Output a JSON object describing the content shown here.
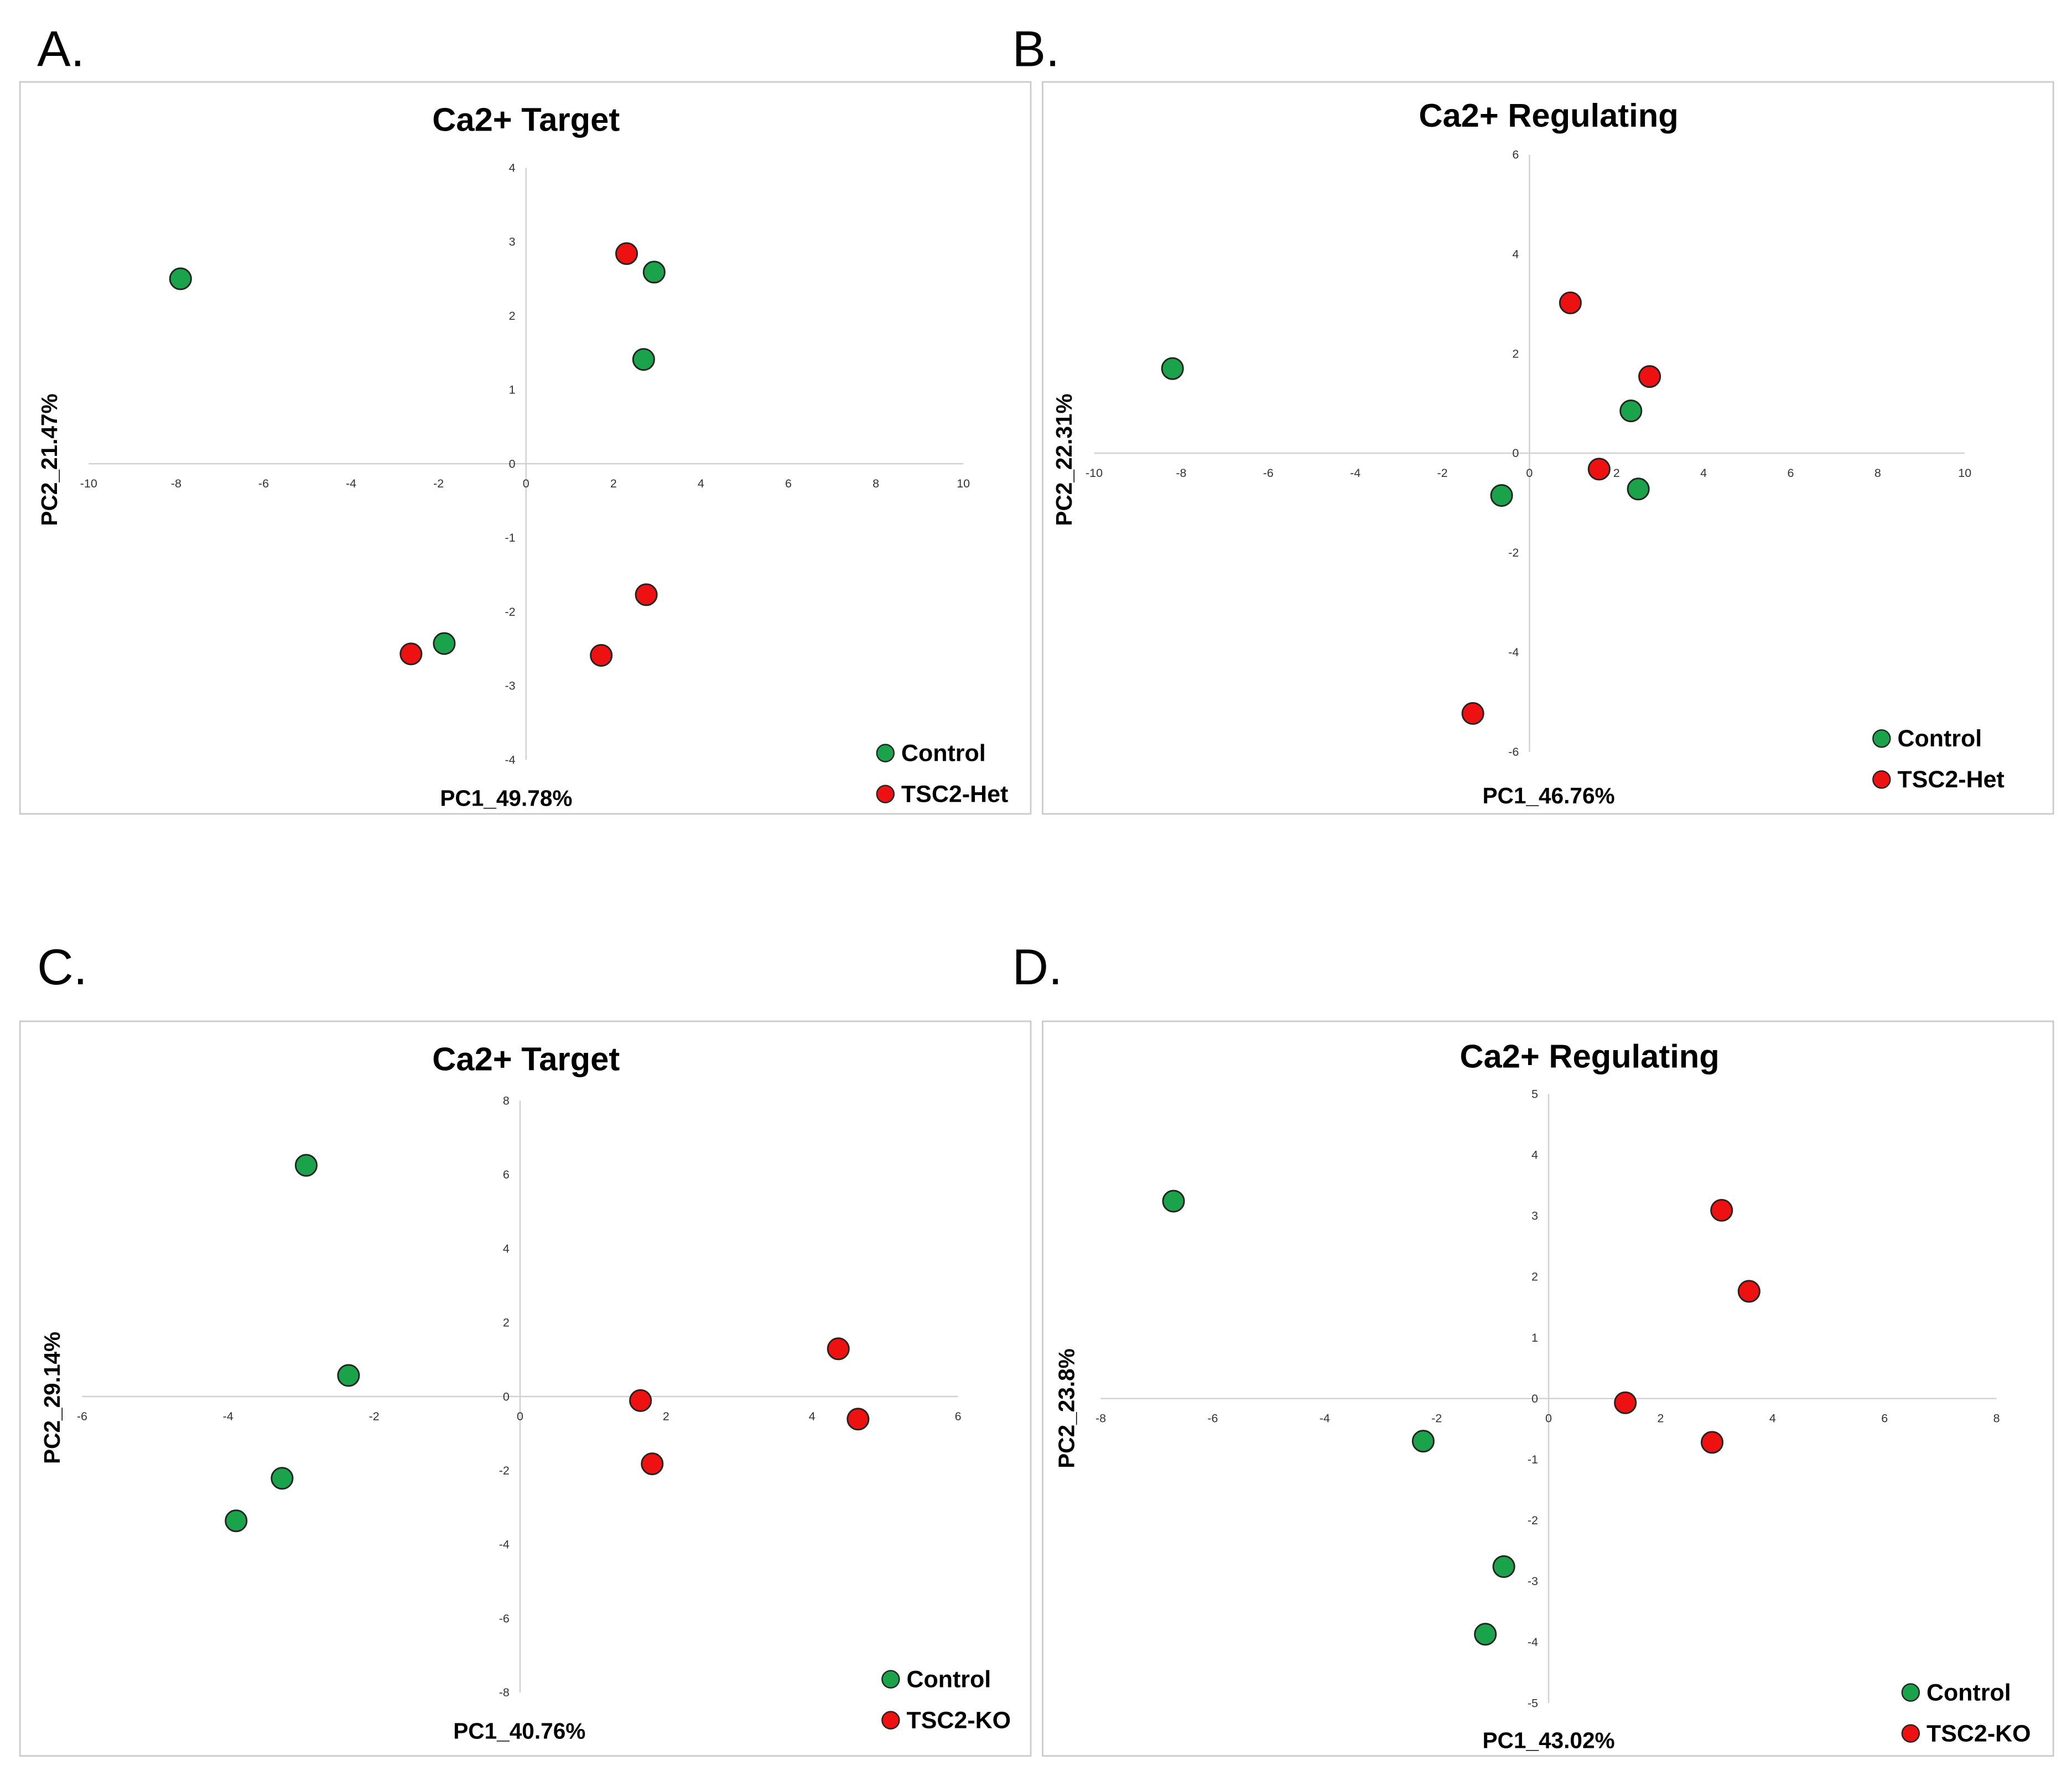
{
  "colors": {
    "Control": "#1aa34a",
    "TSC2-Het": "#ee1111",
    "TSC2-KO": "#ee1111",
    "axis": "#d0d0d0",
    "border": "#cccccc"
  },
  "chart_data": [
    {
      "panel": "A.",
      "type": "scatter",
      "title": "Ca2+ Target",
      "xlabel": "PC1_49.78%",
      "ylabel": "PC2_21.47%",
      "xlim": [
        -10,
        10
      ],
      "ylim": [
        -4,
        4
      ],
      "xstep": 2,
      "ystep": 1,
      "legend_position": "bottom-right",
      "series": [
        {
          "name": "Control",
          "points": [
            [
              -7.9,
              2.5
            ],
            [
              2.93,
              2.59
            ],
            [
              2.69,
              1.41
            ],
            [
              -1.87,
              -2.43
            ]
          ]
        },
        {
          "name": "TSC2-Het",
          "points": [
            [
              2.3,
              2.84
            ],
            [
              2.75,
              -1.77
            ],
            [
              -2.63,
              -2.57
            ],
            [
              1.72,
              -2.59
            ]
          ]
        }
      ]
    },
    {
      "panel": "B.",
      "type": "scatter",
      "title": "Ca2+ Regulating",
      "xlabel": "PC1_46.76%",
      "ylabel": "PC2_22.31%",
      "xlim": [
        -10,
        10
      ],
      "ylim": [
        -6,
        6
      ],
      "xstep": 2,
      "ystep": 2,
      "legend_position": "bottom-right",
      "series": [
        {
          "name": "Control",
          "points": [
            [
              -8.2,
              1.7
            ],
            [
              2.33,
              0.85
            ],
            [
              2.5,
              -0.72
            ],
            [
              -0.64,
              -0.85
            ]
          ]
        },
        {
          "name": "TSC2-Het",
          "points": [
            [
              0.94,
              3.02
            ],
            [
              2.76,
              1.54
            ],
            [
              1.6,
              -0.32
            ],
            [
              -1.3,
              -5.23
            ]
          ]
        }
      ]
    },
    {
      "panel": "C.",
      "type": "scatter",
      "title": "Ca2+ Target",
      "xlabel": "PC1_40.76%",
      "ylabel": "PC2_29.14%",
      "xlim": [
        -6,
        6
      ],
      "ylim": [
        -8,
        8
      ],
      "xstep": 2,
      "ystep": 2,
      "legend_position": "bottom-right",
      "series": [
        {
          "name": "Control",
          "points": [
            [
              -2.93,
              6.25
            ],
            [
              -2.35,
              0.57
            ],
            [
              -3.26,
              -2.21
            ],
            [
              -3.89,
              -3.36
            ]
          ]
        },
        {
          "name": "TSC2-KO",
          "points": [
            [
              4.36,
              1.29
            ],
            [
              4.63,
              -0.61
            ],
            [
              1.65,
              -0.11
            ],
            [
              1.81,
              -1.82
            ]
          ]
        }
      ]
    },
    {
      "panel": "D.",
      "type": "scatter",
      "title": "Ca2+ Regulating",
      "xlabel": "PC1_43.02%",
      "ylabel": "PC2_23.8%",
      "xlim": [
        -8,
        8
      ],
      "ylim": [
        -5,
        5
      ],
      "xstep": 2,
      "ystep": 1,
      "legend_position": "bottom-right",
      "series": [
        {
          "name": "Control",
          "points": [
            [
              -6.7,
              3.24
            ],
            [
              -2.24,
              -0.7
            ],
            [
              -0.8,
              -2.76
            ],
            [
              -1.13,
              -3.87
            ]
          ]
        },
        {
          "name": "TSC2-KO",
          "points": [
            [
              3.09,
              3.09
            ],
            [
              3.58,
              1.76
            ],
            [
              1.37,
              -0.07
            ],
            [
              2.92,
              -0.72
            ]
          ]
        }
      ]
    }
  ]
}
